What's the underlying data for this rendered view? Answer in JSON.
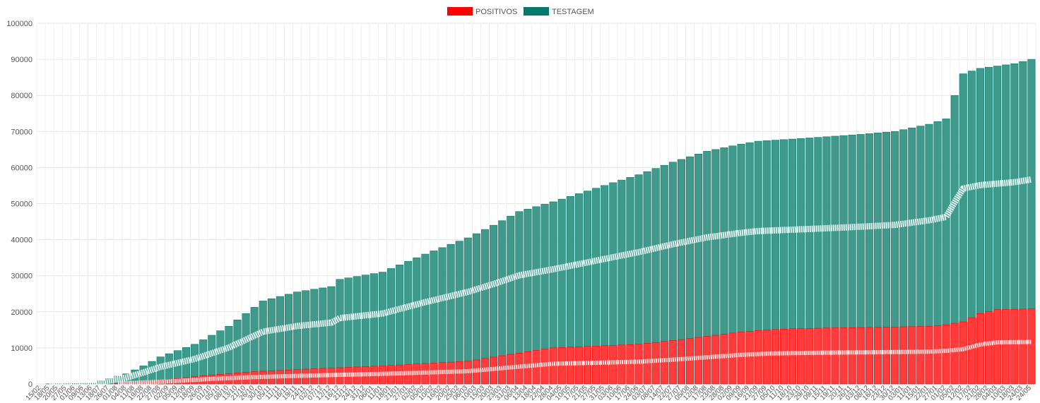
{
  "legend": {
    "items": [
      {
        "label": "POSITIVOS",
        "color": "#ff0000"
      },
      {
        "label": "TESTAGEM",
        "color": "#067a6b"
      }
    ]
  },
  "chart_data": {
    "type": "bar",
    "stacked": false,
    "legend_position": "top-center",
    "grid": true,
    "ylim": [
      0,
      100000
    ],
    "yticks": [
      0,
      10000,
      20000,
      30000,
      40000,
      50000,
      60000,
      70000,
      80000,
      90000,
      100000
    ],
    "x_tick_labels": [
      "15/02",
      "18/05",
      "20/05",
      "27/05",
      "01/06",
      "09/06",
      "13/06",
      "18/07",
      "26/07",
      "01/08",
      "04/08",
      "11/08",
      "19/08",
      "22/08",
      "27/08",
      "02/09",
      "05/09",
      "12/09",
      "18/09",
      "26/09",
      "01/10",
      "05/10",
      "08/10",
      "13/10",
      "21/10",
      "26/10",
      "30/10",
      "05/11",
      "11/11",
      "16/11",
      "19/11",
      "24/11",
      "02/12",
      "07/12",
      "12/12",
      "16/12",
      "21/12",
      "24/12",
      "31/12",
      "06/01",
      "11/01",
      "18/01",
      "21/01",
      "27/01",
      "02/02",
      "05/02",
      "10/02",
      "16/02",
      "20/02",
      "25/02",
      "06/03",
      "10/03",
      "15/03",
      "20/03",
      "23/03",
      "31/03",
      "06/04",
      "13/04",
      "18/04",
      "22/04",
      "28/04",
      "04/05",
      "10/05",
      "17/05",
      "21/05",
      "27/05",
      "31/05",
      "03/06",
      "10/06",
      "17/06",
      "24/06",
      "03/07",
      "08/07",
      "14/07",
      "22/07",
      "27/07",
      "05/08",
      "12/08",
      "17/08",
      "23/08",
      "28/08",
      "02/09",
      "09/09",
      "16/09",
      "21/09",
      "27/09",
      "05/10",
      "11/10",
      "18/10",
      "23/10",
      "29/10",
      "09/11",
      "15/11",
      "19/11",
      "20/11",
      "26/11",
      "03/12",
      "08/12",
      "16/12",
      "23/12",
      "30/12",
      "03/01",
      "11/01",
      "15/01",
      "22/01",
      "27/01",
      "01/02",
      "05/02",
      "12/02",
      "17/02",
      "21/02",
      "28/02",
      "04/03",
      "10/03",
      "18/03",
      "24/03",
      "24/05"
    ],
    "series": [
      {
        "name": "POSITIVOS",
        "color": "#ff0000",
        "points": [
          [
            0,
            0
          ],
          [
            8,
            0
          ],
          [
            12,
            700
          ],
          [
            16,
            1500
          ],
          [
            20,
            2500
          ],
          [
            25,
            3400
          ],
          [
            30,
            4000
          ],
          [
            40,
            5000
          ],
          [
            50,
            6300
          ],
          [
            55,
            8200
          ],
          [
            60,
            10000
          ],
          [
            70,
            11000
          ],
          [
            75,
            12300
          ],
          [
            78,
            13200
          ],
          [
            82,
            14400
          ],
          [
            85,
            15000
          ],
          [
            88,
            15300
          ],
          [
            92,
            15500
          ],
          [
            98,
            15700
          ],
          [
            104,
            16000
          ],
          [
            106,
            16400
          ],
          [
            108,
            17200
          ],
          [
            110,
            19500
          ],
          [
            112,
            20600
          ],
          [
            116,
            20800
          ],
          [
            120,
            21000
          ]
        ]
      },
      {
        "name": "TESTAGEM",
        "color": "#067a6b",
        "points": [
          [
            0,
            0
          ],
          [
            6,
            200
          ],
          [
            10,
            2800
          ],
          [
            12,
            5000
          ],
          [
            14,
            7500
          ],
          [
            18,
            11000
          ],
          [
            22,
            16000
          ],
          [
            24,
            19500
          ],
          [
            26,
            23000
          ],
          [
            30,
            25500
          ],
          [
            34,
            27000
          ],
          [
            35,
            29000
          ],
          [
            40,
            31000
          ],
          [
            45,
            36000
          ],
          [
            50,
            40500
          ],
          [
            53,
            44000
          ],
          [
            56,
            47800
          ],
          [
            60,
            50500
          ],
          [
            64,
            53500
          ],
          [
            67,
            55800
          ],
          [
            70,
            58000
          ],
          [
            74,
            61500
          ],
          [
            78,
            64500
          ],
          [
            82,
            66500
          ],
          [
            84,
            67300
          ],
          [
            90,
            68200
          ],
          [
            96,
            69200
          ],
          [
            100,
            70000
          ],
          [
            102,
            71000
          ],
          [
            104,
            72000
          ],
          [
            106,
            73500
          ],
          [
            107,
            80000
          ],
          [
            108,
            86000
          ],
          [
            110,
            87500
          ],
          [
            114,
            88800
          ],
          [
            116,
            90000
          ],
          [
            120,
            91500
          ]
        ]
      }
    ]
  }
}
